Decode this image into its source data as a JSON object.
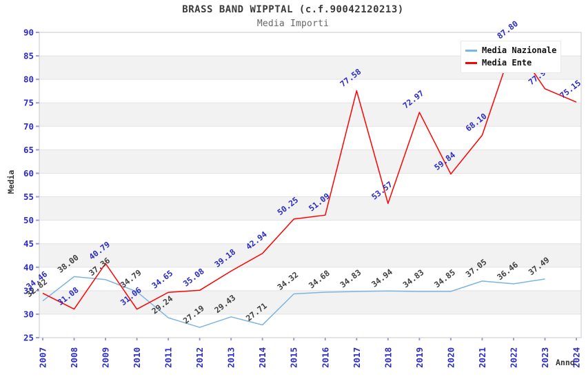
{
  "header": {
    "title": "BRASS BAND WIPPTAL (c.f.90042120213)",
    "subtitle": "Media Importi"
  },
  "legend": {
    "items": [
      {
        "label": "Media Nazionale",
        "color": "#7cb4e2"
      },
      {
        "label": "Media Ente",
        "color": "#ff0000"
      }
    ]
  },
  "chart_data": {
    "type": "line",
    "title": "BRASS BAND WIPPTAL (c.f.90042120213)",
    "subtitle": "Media Importi",
    "xlabel": "Anno",
    "ylabel": "Media",
    "ylim": [
      25,
      90
    ],
    "ytick_step": 5,
    "grid": "horizontal-bands",
    "band_colors": [
      "#ffffff",
      "#f2f2f2"
    ],
    "gridline_color": "#e2e2e2",
    "plot_border_color": "#c9c9c9",
    "axis_tick_color": "#9a9ade",
    "axis_label_color": "#2b2bc5",
    "legend_position": "top-right",
    "categories": [
      "2007",
      "2008",
      "2009",
      "2010",
      "2011",
      "2012",
      "2013",
      "2014",
      "2015",
      "2016",
      "2017",
      "2018",
      "2019",
      "2020",
      "2021",
      "2022",
      "2023",
      "2024"
    ],
    "series": [
      {
        "name": "Media Nazionale",
        "color": "#7cb4e2",
        "label_color": "#3f3f3f",
        "values": [
          32.82,
          38.0,
          37.36,
          34.79,
          29.24,
          27.19,
          29.43,
          27.71,
          34.32,
          34.68,
          34.83,
          34.94,
          34.83,
          34.85,
          37.05,
          36.46,
          37.49,
          null
        ]
      },
      {
        "name": "Media Ente",
        "color": "#ff0000",
        "label_color": "#2b2bc5",
        "values": [
          34.46,
          31.08,
          40.79,
          31.06,
          34.65,
          35.08,
          39.18,
          42.94,
          50.25,
          51.09,
          77.58,
          53.57,
          72.97,
          59.84,
          68.1,
          87.8,
          77.99,
          75.15
        ]
      }
    ]
  }
}
